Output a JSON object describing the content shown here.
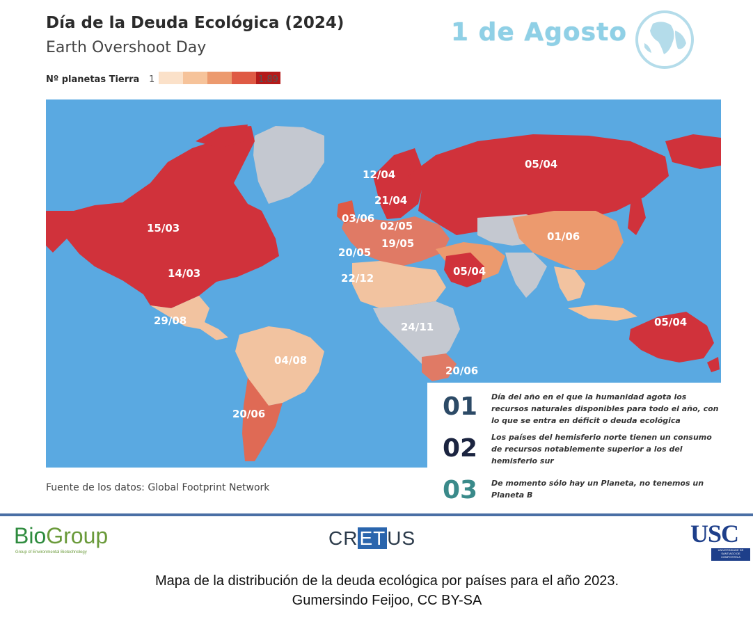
{
  "header": {
    "title": "Día de la Deuda Ecológica (2024)",
    "subtitle": "Earth Overshoot Day",
    "date": "1 de Agosto"
  },
  "legend": {
    "label": "Nº planetas Tierra",
    "min": "1",
    "max": "1.89",
    "colors": [
      "#fbe1c9",
      "#f6c39a",
      "#ec9a6e",
      "#df5a44",
      "#b41a1a"
    ]
  },
  "map": {
    "ocean_color": "#5aa9e1",
    "labels": {
      "north_canada": "15/03",
      "usa": "14/03",
      "mexico": "29/08",
      "brazil": "04/08",
      "argentina": "20/06",
      "norway": "12/04",
      "sweden": "21/04",
      "uk": "03/06",
      "germany": "02/05",
      "france": "20/05",
      "italy": "19/05",
      "morocco": "22/12",
      "russia": "05/04",
      "china": "01/06",
      "saudi": "05/04",
      "africa": "24/11",
      "south_africa": "20/06",
      "australia": "05/04"
    }
  },
  "info": [
    {
      "num": "01",
      "text": "Día del año en el que la humanidad agota los recursos naturales disponibles  para todo el año, con lo que se entra en déficit o deuda ecológica",
      "color": "#2c4a66"
    },
    {
      "num": "02",
      "text": "Los países del hemisferio  norte tienen un consumo de recursos notablemente superior a los del hemisferio sur",
      "color": "#1b2440"
    },
    {
      "num": "03",
      "text": "De momento sólo hay un Planeta, no tenemos un Planeta B",
      "color": "#3a8a8a"
    }
  ],
  "source": "Fuente de los datos: Global Footprint Network",
  "logos": {
    "biogroup_bio": "Bio",
    "biogroup_group": "Group",
    "biogroup_sub": "Group of Environmental Biotechnology",
    "cretus_cr": "CR",
    "cretus_et": "ET",
    "cretus_us": "US",
    "usc": "USC",
    "usc_sub": "UNIVERSIDADE DE SANTIAGO DE COMPOSTELA"
  },
  "caption": {
    "line1": "Mapa de la distribución de la deuda ecológica por países para el año 2023.",
    "line2": "Gumersindo Feijoo, CC BY-SA"
  }
}
